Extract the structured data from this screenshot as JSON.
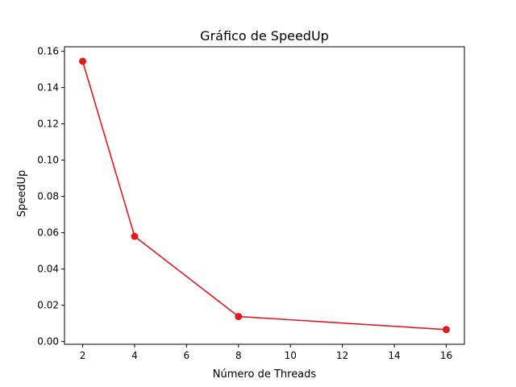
{
  "chart_data": {
    "type": "line",
    "title": "Gráfico de SpeedUp",
    "xlabel": "Número de Threads",
    "ylabel": "SpeedUp",
    "xlim": [
      1.3,
      16.7
    ],
    "ylim": [
      -0.0015,
      0.1625
    ],
    "xticks": [
      2,
      4,
      6,
      8,
      10,
      12,
      14,
      16
    ],
    "yticks": [
      0.0,
      0.02,
      0.04,
      0.06,
      0.08,
      0.1,
      0.12,
      0.14,
      0.16
    ],
    "ytick_labels": [
      "0.00",
      "0.02",
      "0.04",
      "0.06",
      "0.08",
      "0.10",
      "0.12",
      "0.14",
      "0.16"
    ],
    "grid": false,
    "series": [
      {
        "color": "#e31a1c",
        "marker": "circle",
        "x": [
          2,
          4,
          8,
          16
        ],
        "y": [
          0.1545,
          0.058,
          0.0138,
          0.0066
        ]
      }
    ]
  }
}
